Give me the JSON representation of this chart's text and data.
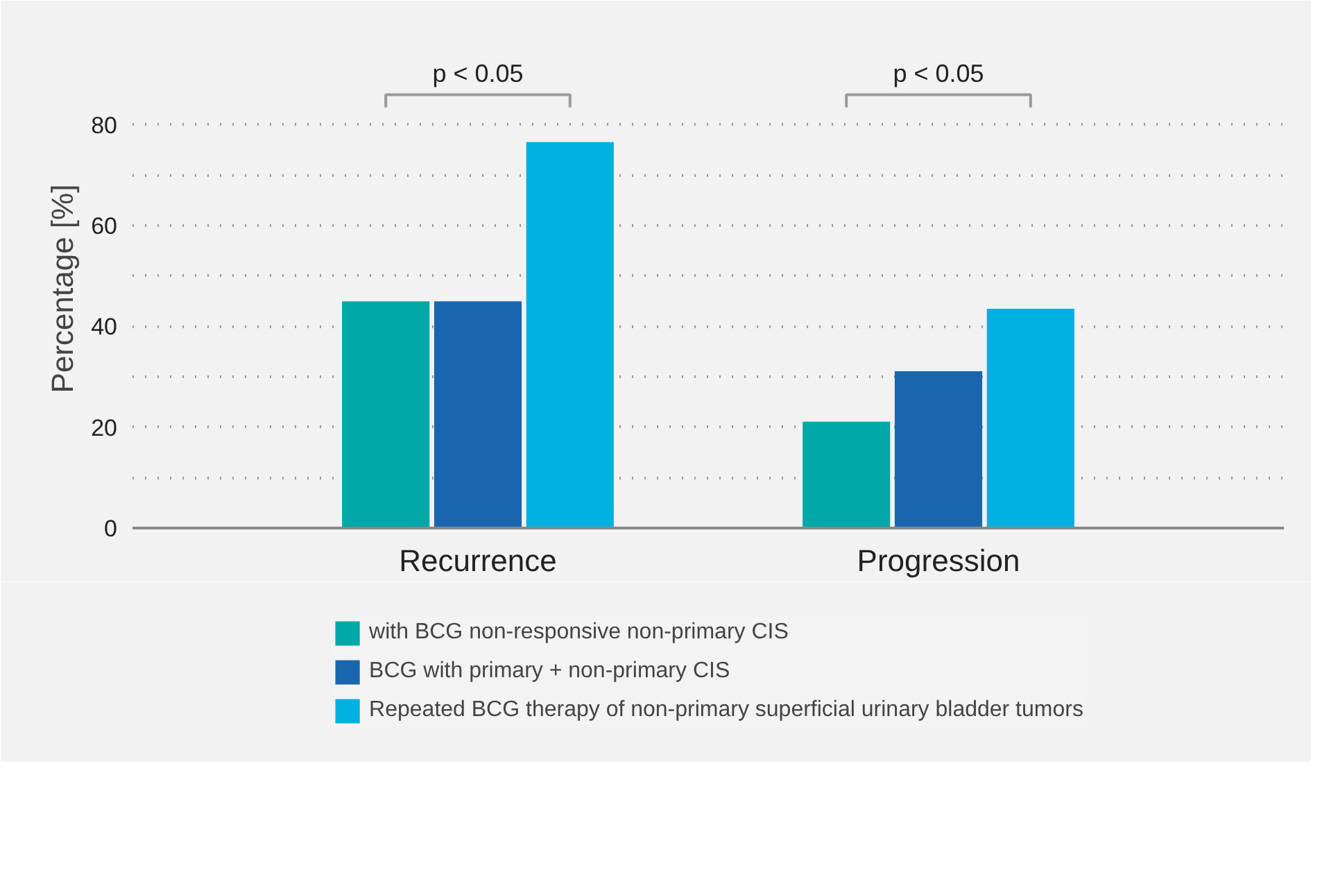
{
  "chart_data": {
    "type": "bar",
    "ylabel": "Percentage [%]",
    "categories": [
      "Recurrence",
      "Progression"
    ],
    "series": [
      {
        "name": "with BCG non-responsive non-primary CIS",
        "color": "#00a8a8",
        "values": [
          45.0,
          21.1
        ]
      },
      {
        "name": "BCG with primary + non-primary CIS",
        "color": "#1a66ae",
        "values": [
          45.0,
          31.1
        ]
      },
      {
        "name": "Repeated BCG therapy of non-primary superficial urinary bladder tumors",
        "color": "#00b0e0",
        "values": [
          76.6,
          43.5
        ]
      }
    ],
    "ylim": [
      0,
      95
    ],
    "yticks": [
      0,
      {
        "value": 10,
        "label": null
      },
      20,
      {
        "value": 30,
        "label": null
      },
      40,
      {
        "value": 50,
        "label": null
      },
      60,
      {
        "value": 70,
        "label": null
      },
      80
    ],
    "annotations": [
      "p < 0.05",
      "p < 0.05"
    ],
    "grid": "y",
    "legend": "bottom"
  }
}
